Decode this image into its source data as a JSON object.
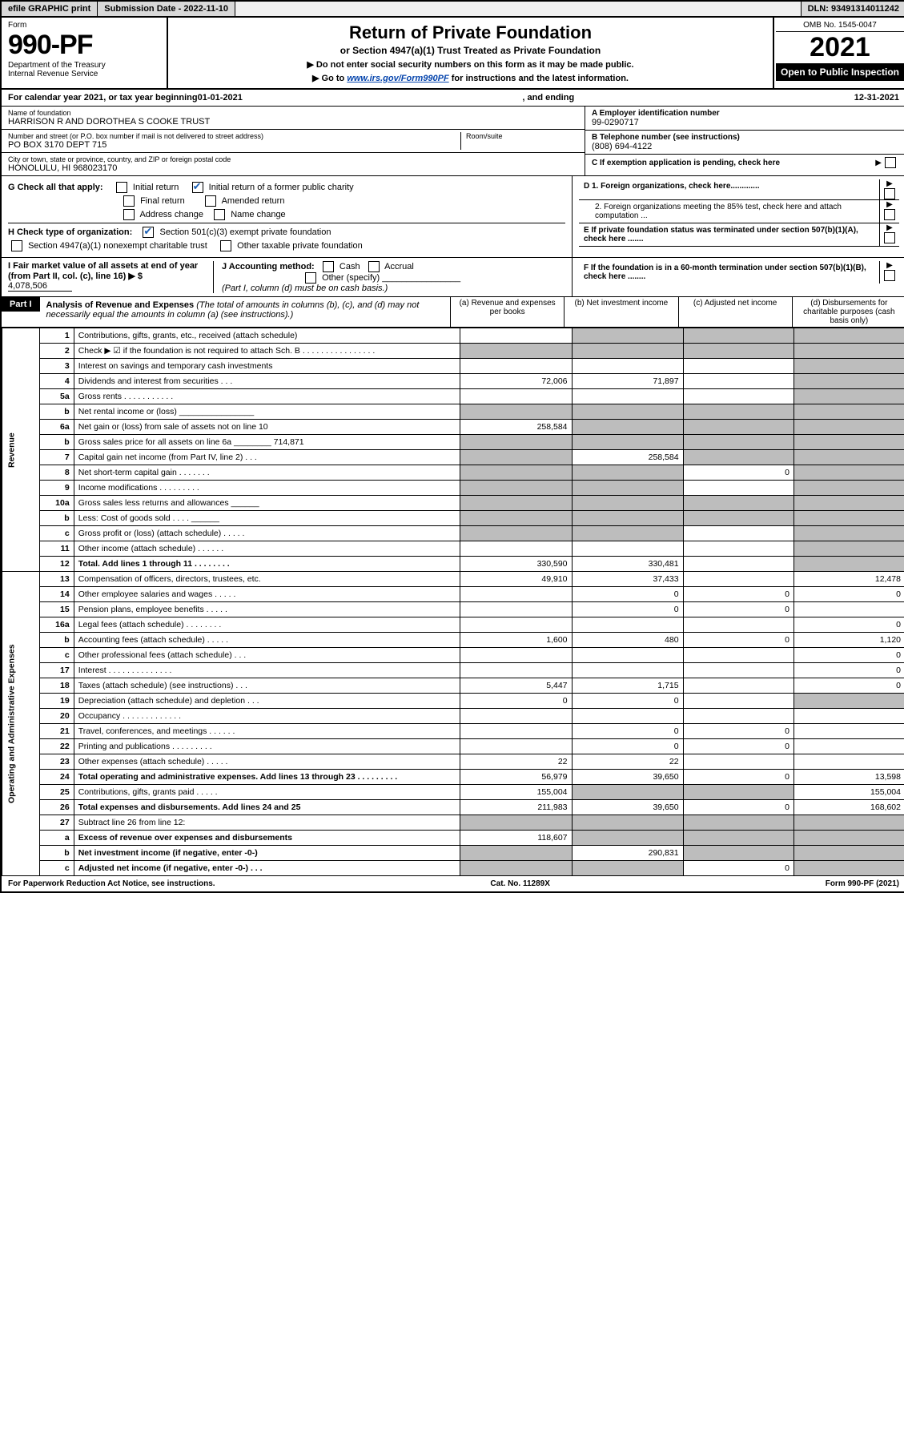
{
  "topbar": {
    "efile": "efile GRAPHIC print",
    "sub_label": "Submission Date - 2022-11-10",
    "dln": "DLN: 93491314011242"
  },
  "header": {
    "form_label": "Form",
    "form_num": "990-PF",
    "dept": "Department of the Treasury",
    "irs": "Internal Revenue Service",
    "title": "Return of Private Foundation",
    "subtitle": "or Section 4947(a)(1) Trust Treated as Private Foundation",
    "note1": "▶ Do not enter social security numbers on this form as it may be made public.",
    "note2_pre": "▶ Go to ",
    "note2_link": "www.irs.gov/Form990PF",
    "note2_post": " for instructions and the latest information.",
    "omb": "OMB No. 1545-0047",
    "year": "2021",
    "open": "Open to Public Inspection"
  },
  "calendar": {
    "pre": "For calendar year 2021, or tax year beginning ",
    "begin": "01-01-2021",
    "mid": ", and ending ",
    "end": "12-31-2021"
  },
  "id": {
    "name_label": "Name of foundation",
    "name": "HARRISON R AND DOROTHEA S COOKE TRUST",
    "addr_label": "Number and street (or P.O. box number if mail is not delivered to street address)",
    "addr": "PO BOX 3170 DEPT 715",
    "room_label": "Room/suite",
    "room": "",
    "city_label": "City or town, state or province, country, and ZIP or foreign postal code",
    "city": "HONOLULU, HI  968023170",
    "a_label": "A Employer identification number",
    "a_val": "99-0290717",
    "b_label": "B Telephone number (see instructions)",
    "b_val": "(808) 694-4122",
    "c_label": "C If exemption application is pending, check here"
  },
  "g": {
    "label": "G Check all that apply:",
    "opts": [
      "Initial return",
      "Initial return of a former public charity",
      "Final return",
      "Amended return",
      "Address change",
      "Name change"
    ]
  },
  "h": {
    "label": "H Check type of organization:",
    "opt1": "Section 501(c)(3) exempt private foundation",
    "opt2": "Section 4947(a)(1) nonexempt charitable trust",
    "opt3": "Other taxable private foundation"
  },
  "i": {
    "label": "I Fair market value of all assets at end of year (from Part II, col. (c), line 16) ▶ $",
    "val": "4,078,506"
  },
  "j": {
    "label": "J Accounting method:",
    "cash": "Cash",
    "accrual": "Accrual",
    "other": "Other (specify)",
    "note": "(Part I, column (d) must be on cash basis.)"
  },
  "d": {
    "d1": "D 1. Foreign organizations, check here.............",
    "d2": "2. Foreign organizations meeting the 85% test, check here and attach computation ...",
    "e": "E  If private foundation status was terminated under section 507(b)(1)(A), check here .......",
    "f": "F  If the foundation is in a 60-month termination under section 507(b)(1)(B), check here ........"
  },
  "part1": {
    "label": "Part I",
    "title": "Analysis of Revenue and Expenses",
    "title_note": "(The total of amounts in columns (b), (c), and (d) may not necessarily equal the amounts in column (a) (see instructions).)",
    "cols": {
      "a": "(a)    Revenue and expenses per books",
      "b": "(b)    Net investment income",
      "c": "(c)    Adjusted net income",
      "d": "(d)    Disbursements for charitable purposes (cash basis only)"
    }
  },
  "side_labels": {
    "revenue": "Revenue",
    "expenses": "Operating and Administrative Expenses"
  },
  "rows": [
    {
      "n": "1",
      "desc": "Contributions, gifts, grants, etc., received (attach schedule)",
      "a": "",
      "b": "shaded",
      "c": "shaded",
      "d": "shaded"
    },
    {
      "n": "2",
      "desc": "Check ▶ ☑ if the foundation is not required to attach Sch. B   .   .   .   .   .   .   .   .   .   .   .   .   .   .   .   .",
      "a": "shaded",
      "b": "shaded",
      "c": "shaded",
      "d": "shaded"
    },
    {
      "n": "3",
      "desc": "Interest on savings and temporary cash investments",
      "a": "",
      "b": "",
      "c": "",
      "d": "shaded"
    },
    {
      "n": "4",
      "desc": "Dividends and interest from securities   .   .   .",
      "a": "72,006",
      "b": "71,897",
      "c": "",
      "d": "shaded"
    },
    {
      "n": "5a",
      "desc": "Gross rents   .   .   .   .   .   .   .   .   .   .   .",
      "a": "",
      "b": "",
      "c": "",
      "d": "shaded"
    },
    {
      "n": "b",
      "desc": "Net rental income or (loss)  ________________",
      "a": "shaded",
      "b": "shaded",
      "c": "shaded",
      "d": "shaded"
    },
    {
      "n": "6a",
      "desc": "Net gain or (loss) from sale of assets not on line 10",
      "a": "258,584",
      "b": "shaded",
      "c": "shaded",
      "d": "shaded"
    },
    {
      "n": "b",
      "desc": "Gross sales price for all assets on line 6a ________ 714,871",
      "a": "shaded",
      "b": "shaded",
      "c": "shaded",
      "d": "shaded"
    },
    {
      "n": "7",
      "desc": "Capital gain net income (from Part IV, line 2)   .   .   .",
      "a": "shaded",
      "b": "258,584",
      "c": "shaded",
      "d": "shaded"
    },
    {
      "n": "8",
      "desc": "Net short-term capital gain   .   .   .   .   .   .   .",
      "a": "shaded",
      "b": "shaded",
      "c": "0",
      "d": "shaded"
    },
    {
      "n": "9",
      "desc": "Income modifications .   .   .   .   .   .   .   .   .",
      "a": "shaded",
      "b": "shaded",
      "c": "",
      "d": "shaded"
    },
    {
      "n": "10a",
      "desc": "Gross sales less returns and allowances  ______",
      "a": "shaded",
      "b": "shaded",
      "c": "shaded",
      "d": "shaded"
    },
    {
      "n": "b",
      "desc": "Less: Cost of goods sold   .   .   .   .  ______",
      "a": "shaded",
      "b": "shaded",
      "c": "shaded",
      "d": "shaded"
    },
    {
      "n": "c",
      "desc": "Gross profit or (loss) (attach schedule)   .   .   .   .   .",
      "a": "shaded",
      "b": "shaded",
      "c": "",
      "d": "shaded"
    },
    {
      "n": "11",
      "desc": "Other income (attach schedule)   .   .   .   .   .   .",
      "a": "",
      "b": "",
      "c": "",
      "d": "shaded"
    },
    {
      "n": "12",
      "desc": "Total. Add lines 1 through 11   .   .   .   .   .   .   .   .",
      "bold": true,
      "a": "330,590",
      "b": "330,481",
      "c": "",
      "d": "shaded"
    },
    {
      "n": "13",
      "desc": "Compensation of officers, directors, trustees, etc.",
      "a": "49,910",
      "b": "37,433",
      "c": "",
      "d": "12,478"
    },
    {
      "n": "14",
      "desc": "Other employee salaries and wages   .   .   .   .   .",
      "a": "",
      "b": "0",
      "c": "0",
      "d": "0"
    },
    {
      "n": "15",
      "desc": "Pension plans, employee benefits   .   .   .   .   .",
      "a": "",
      "b": "0",
      "c": "0",
      "d": ""
    },
    {
      "n": "16a",
      "desc": "Legal fees (attach schedule) .   .   .   .   .   .   .   .",
      "a": "",
      "b": "",
      "c": "",
      "d": "0"
    },
    {
      "n": "b",
      "desc": "Accounting fees (attach schedule)   .   .   .   .   .",
      "a": "1,600",
      "b": "480",
      "c": "0",
      "d": "1,120"
    },
    {
      "n": "c",
      "desc": "Other professional fees (attach schedule)   .   .   .",
      "a": "",
      "b": "",
      "c": "",
      "d": "0"
    },
    {
      "n": "17",
      "desc": "Interest .   .   .   .   .   .   .   .   .   .   .   .   .   .",
      "a": "",
      "b": "",
      "c": "",
      "d": "0"
    },
    {
      "n": "18",
      "desc": "Taxes (attach schedule) (see instructions)   .   .   .",
      "a": "5,447",
      "b": "1,715",
      "c": "",
      "d": "0"
    },
    {
      "n": "19",
      "desc": "Depreciation (attach schedule) and depletion   .   .   .",
      "a": "0",
      "b": "0",
      "c": "",
      "d": "shaded"
    },
    {
      "n": "20",
      "desc": "Occupancy .   .   .   .   .   .   .   .   .   .   .   .   .",
      "a": "",
      "b": "",
      "c": "",
      "d": ""
    },
    {
      "n": "21",
      "desc": "Travel, conferences, and meetings .   .   .   .   .   .",
      "a": "",
      "b": "0",
      "c": "0",
      "d": ""
    },
    {
      "n": "22",
      "desc": "Printing and publications .   .   .   .   .   .   .   .   .",
      "a": "",
      "b": "0",
      "c": "0",
      "d": ""
    },
    {
      "n": "23",
      "desc": "Other expenses (attach schedule)   .   .   .   .   .",
      "a": "22",
      "b": "22",
      "c": "",
      "d": ""
    },
    {
      "n": "24",
      "desc": "Total operating and administrative expenses. Add lines 13 through 23   .   .   .   .   .   .   .   .   .",
      "bold": true,
      "a": "56,979",
      "b": "39,650",
      "c": "0",
      "d": "13,598"
    },
    {
      "n": "25",
      "desc": "Contributions, gifts, grants paid   .   .   .   .   .",
      "a": "155,004",
      "b": "shaded",
      "c": "shaded",
      "d": "155,004"
    },
    {
      "n": "26",
      "desc": "Total expenses and disbursements. Add lines 24 and 25",
      "bold": true,
      "a": "211,983",
      "b": "39,650",
      "c": "0",
      "d": "168,602"
    },
    {
      "n": "27",
      "desc": "Subtract line 26 from line 12:",
      "a": "shaded",
      "b": "shaded",
      "c": "shaded",
      "d": "shaded"
    },
    {
      "n": "a",
      "desc": "Excess of revenue over expenses and disbursements",
      "bold": true,
      "a": "118,607",
      "b": "shaded",
      "c": "shaded",
      "d": "shaded"
    },
    {
      "n": "b",
      "desc": "Net investment income (if negative, enter -0-)",
      "bold": true,
      "a": "shaded",
      "b": "290,831",
      "c": "shaded",
      "d": "shaded"
    },
    {
      "n": "c",
      "desc": "Adjusted net income (if negative, enter -0-)   .   .   .",
      "bold": true,
      "a": "shaded",
      "b": "shaded",
      "c": "0",
      "d": "shaded"
    }
  ],
  "footer": {
    "left": "For Paperwork Reduction Act Notice, see instructions.",
    "mid": "Cat. No. 11289X",
    "right": "Form 990-PF (2021)"
  }
}
